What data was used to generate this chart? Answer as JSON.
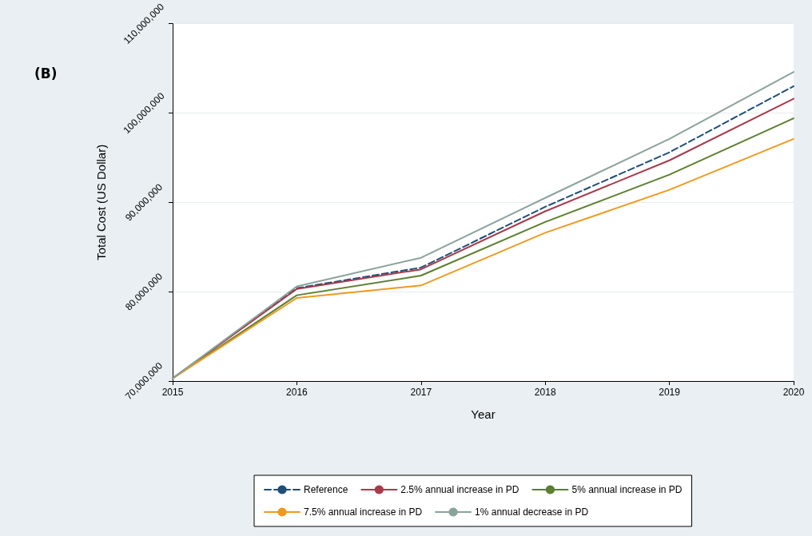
{
  "chart_data": {
    "type": "line",
    "title": "(B)",
    "xlabel": "Year",
    "ylabel": "Total Cost (US Dollar)",
    "x": [
      2015,
      2016,
      2017,
      2018,
      2019,
      2020
    ],
    "xlim": [
      2015,
      2020
    ],
    "xticks": [
      2015,
      2016,
      2017,
      2018,
      2019,
      2020
    ],
    "ylim": [
      70000000,
      110000000
    ],
    "yticks": [
      {
        "value": 70000000,
        "label": "70,000,000"
      },
      {
        "value": 80000000,
        "label": "80,000,000"
      },
      {
        "value": 90000000,
        "label": "90,000,000"
      },
      {
        "value": 100000000,
        "label": "100,000,000"
      },
      {
        "value": 110000000,
        "label": "110,000,000"
      }
    ],
    "grid": "y",
    "legend": "bottom",
    "marker": "none",
    "series": [
      {
        "name": "Reference",
        "color": "#1f4e79",
        "line_style": "dashed",
        "values": [
          70300000,
          80400000,
          82700000,
          89500000,
          95600000,
          103000000
        ]
      },
      {
        "name": "2.5% annual increase in PD",
        "color": "#a83a4a",
        "values": [
          70300000,
          80300000,
          82500000,
          89000000,
          94700000,
          101600000
        ]
      },
      {
        "name": "5% annual increase in PD",
        "color": "#5b7f2e",
        "values": [
          70300000,
          79600000,
          81800000,
          87800000,
          93100000,
          99400000
        ]
      },
      {
        "name": "7.5% annual increase in PD",
        "color": "#ee9a1e",
        "values": [
          70300000,
          79300000,
          80700000,
          86600000,
          91400000,
          97100000
        ]
      },
      {
        "name": "1% annual decrease in PD",
        "color": "#8aa39b",
        "values": [
          70300000,
          80600000,
          83800000,
          90500000,
          97100000,
          104600000
        ]
      }
    ]
  }
}
